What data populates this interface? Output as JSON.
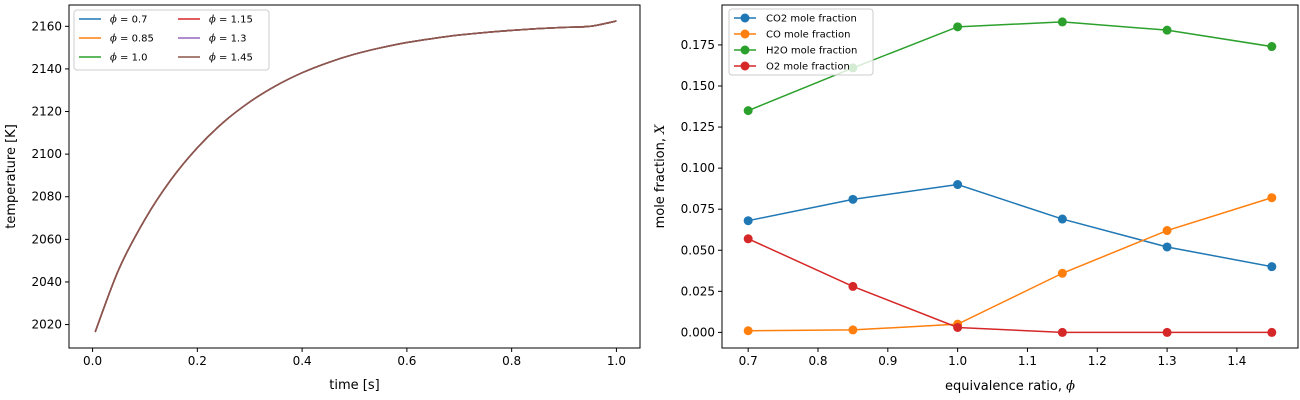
{
  "chart_data": [
    {
      "type": "line",
      "xlabel": "time [s]",
      "ylabel": "temperature [K]",
      "xlim": [
        -0.045,
        1.045
      ],
      "ylim": [
        2009,
        2170
      ],
      "xticks": [
        0.0,
        0.2,
        0.4,
        0.6,
        0.8,
        1.0
      ],
      "xtick_labels": [
        "0.0",
        "0.2",
        "0.4",
        "0.6",
        "0.8",
        "1.0"
      ],
      "yticks": [
        2020,
        2040,
        2060,
        2080,
        2100,
        2120,
        2140,
        2160
      ],
      "ytick_labels": [
        "2020",
        "2040",
        "2060",
        "2080",
        "2100",
        "2120",
        "2140",
        "2160"
      ],
      "grid": false,
      "legend": {
        "placement": "upper-left",
        "columns": 2,
        "symbol": "ϕ"
      },
      "series": [
        {
          "name": "ϕ = 0.7",
          "legend_value": "0.7",
          "color": "#1f77b4"
        },
        {
          "name": "ϕ = 0.85",
          "legend_value": "0.85",
          "color": "#ff7f0e"
        },
        {
          "name": "ϕ = 1.0",
          "legend_value": "1.0",
          "color": "#2ca02c"
        },
        {
          "name": "ϕ = 1.15",
          "legend_value": "1.15",
          "color": "#d62728"
        },
        {
          "name": "ϕ = 1.3",
          "legend_value": "1.3",
          "color": "#9467bd"
        },
        {
          "name": "ϕ = 1.45",
          "legend_value": "1.45",
          "color": "#8c564b"
        }
      ],
      "x": [
        0.005,
        0.05,
        0.1,
        0.15,
        0.2,
        0.25,
        0.3,
        0.35,
        0.4,
        0.45,
        0.5,
        0.55,
        0.6,
        0.65,
        0.7,
        0.75,
        0.8,
        0.85,
        0.9,
        0.95,
        1.0
      ],
      "y": [
        2016.5,
        2045.9,
        2069.4,
        2088.1,
        2103.0,
        2115.0,
        2124.5,
        2132.1,
        2138.2,
        2143.0,
        2146.9,
        2149.9,
        2152.4,
        2154.3,
        2155.9,
        2157.1,
        2158.1,
        2158.9,
        2159.5,
        2160.0,
        2162.5
      ]
    },
    {
      "type": "line",
      "markers": true,
      "xlabel_text": "equivalence ratio, ",
      "xlabel_symbol": "ϕ",
      "ylabel_text": "mole fraction, ",
      "ylabel_symbol": "X",
      "xlim": [
        0.6625,
        1.4875
      ],
      "ylim": [
        -0.0095,
        0.1993
      ],
      "xticks": [
        0.7,
        0.8,
        0.9,
        1.0,
        1.1,
        1.2,
        1.3,
        1.4
      ],
      "xtick_labels": [
        "0.7",
        "0.8",
        "0.9",
        "1.0",
        "1.1",
        "1.2",
        "1.3",
        "1.4"
      ],
      "yticks": [
        0.0,
        0.025,
        0.05,
        0.075,
        0.1,
        0.125,
        0.15,
        0.175
      ],
      "ytick_labels": [
        "0.000",
        "0.025",
        "0.050",
        "0.075",
        "0.100",
        "0.125",
        "0.150",
        "0.175"
      ],
      "grid": false,
      "legend": {
        "placement": "upper-left"
      },
      "x": [
        0.7,
        0.85,
        1.0,
        1.15,
        1.3,
        1.45
      ],
      "series": [
        {
          "name": "CO2 mole fraction",
          "color": "#1f77b4",
          "values": [
            0.068,
            0.081,
            0.09,
            0.069,
            0.052,
            0.04
          ]
        },
        {
          "name": "CO mole fraction",
          "color": "#ff7f0e",
          "values": [
            0.001,
            0.0015,
            0.005,
            0.036,
            0.062,
            0.082
          ]
        },
        {
          "name": "H2O mole fraction",
          "color": "#2ca02c",
          "values": [
            0.135,
            0.161,
            0.186,
            0.189,
            0.184,
            0.174
          ]
        },
        {
          "name": "O2 mole fraction",
          "color": "#d62728",
          "values": [
            0.057,
            0.028,
            0.003,
            0.0,
            0.0,
            0.0
          ]
        }
      ]
    }
  ]
}
